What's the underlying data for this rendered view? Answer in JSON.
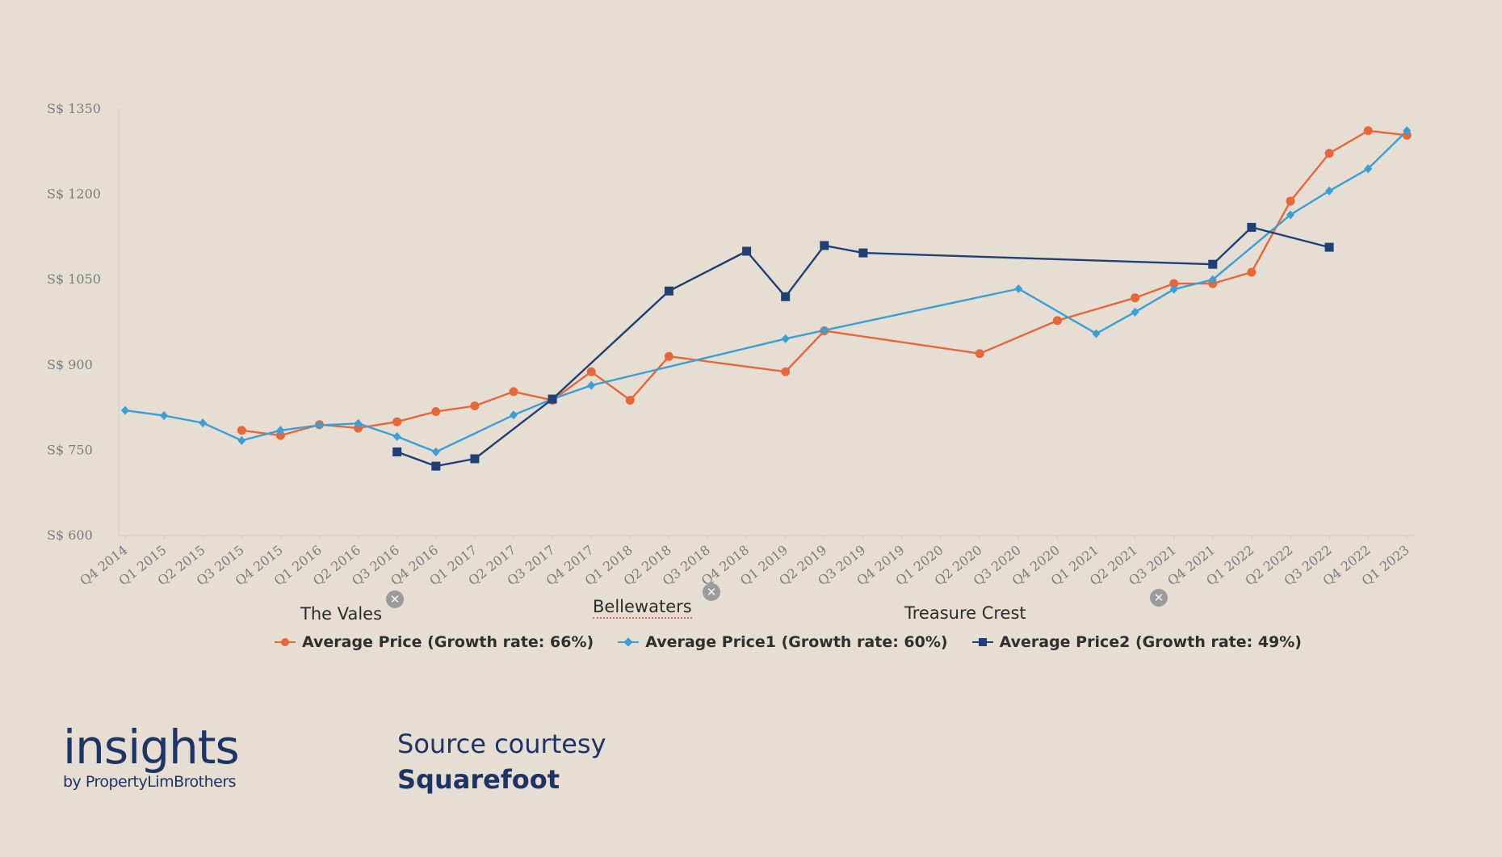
{
  "chart_data": {
    "type": "line",
    "categories": [
      "Q4 2014",
      "Q1 2015",
      "Q2 2015",
      "Q3 2015",
      "Q4 2015",
      "Q1 2016",
      "Q2 2016",
      "Q3 2016",
      "Q4 2016",
      "Q1 2017",
      "Q2 2017",
      "Q3 2017",
      "Q4 2017",
      "Q1 2018",
      "Q2 2018",
      "Q3 2018",
      "Q4 2018",
      "Q1 2019",
      "Q2 2019",
      "Q3 2019",
      "Q4 2019",
      "Q1 2020",
      "Q2 2020",
      "Q3 2020",
      "Q4 2020",
      "Q1 2021",
      "Q2 2021",
      "Q3 2021",
      "Q4 2021",
      "Q1 2022",
      "Q2 2022",
      "Q3 2022",
      "Q4 2022",
      "Q1 2023"
    ],
    "x_points": [
      0,
      1,
      2,
      3,
      4,
      5,
      6,
      7,
      8,
      9,
      10,
      11,
      12,
      13,
      14,
      15,
      16,
      17,
      18,
      19,
      20,
      21,
      22,
      23,
      24,
      25,
      26,
      27,
      28,
      29,
      30,
      31,
      32,
      33
    ],
    "y_ticks": [
      "S$ 1350",
      "S$ 1200",
      "S$ 1050",
      "S$ 900",
      "S$ 750",
      "S$ 600"
    ],
    "y_tick_values": [
      1350,
      1200,
      1050,
      900,
      750,
      600
    ],
    "ylim": [
      600,
      1350
    ],
    "series": [
      {
        "name": "Average Price (Growth rate: 66%)",
        "color": "#e8673a",
        "marker": "circle",
        "points": [
          [
            3,
            785
          ],
          [
            4,
            776
          ],
          [
            5,
            795
          ],
          [
            6,
            789
          ],
          [
            7,
            800
          ],
          [
            8,
            818
          ],
          [
            9,
            828
          ],
          [
            10,
            853
          ],
          [
            11,
            838
          ],
          [
            12,
            888
          ],
          [
            13,
            838
          ],
          [
            14,
            915
          ],
          [
            17,
            888
          ],
          [
            18,
            960
          ],
          [
            22,
            920
          ],
          [
            24,
            978
          ],
          [
            26,
            1018
          ],
          [
            27,
            1043
          ],
          [
            28,
            1043
          ],
          [
            29,
            1063
          ],
          [
            30,
            1188
          ],
          [
            31,
            1272
          ],
          [
            32,
            1312
          ],
          [
            33,
            1304
          ]
        ]
      },
      {
        "name": "Average Price1 (Growth rate: 60%)",
        "color": "#3a9fd6",
        "marker": "diamond",
        "points": [
          [
            0,
            820
          ],
          [
            1,
            811
          ],
          [
            2,
            798
          ],
          [
            3,
            767
          ],
          [
            4,
            785
          ],
          [
            5,
            794
          ],
          [
            6,
            797
          ],
          [
            7,
            774
          ],
          [
            8,
            747
          ],
          [
            10,
            812
          ],
          [
            11,
            840
          ],
          [
            12,
            864
          ],
          [
            17,
            946
          ],
          [
            18,
            961
          ],
          [
            23,
            1034
          ],
          [
            25,
            955
          ],
          [
            26,
            993
          ],
          [
            27,
            1033
          ],
          [
            28,
            1050
          ],
          [
            30,
            1164
          ],
          [
            31,
            1206
          ],
          [
            32,
            1245
          ],
          [
            33,
            1312
          ]
        ]
      },
      {
        "name": "Average Price2 (Growth rate: 49%)",
        "color": "#1f3f75",
        "marker": "square",
        "points": [
          [
            7,
            747
          ],
          [
            8,
            722
          ],
          [
            9,
            735
          ],
          [
            11,
            840
          ],
          [
            14,
            1030
          ],
          [
            16,
            1100
          ],
          [
            17,
            1020
          ],
          [
            18,
            1110
          ],
          [
            19,
            1097
          ],
          [
            28,
            1077
          ],
          [
            29,
            1142
          ],
          [
            31,
            1107
          ]
        ]
      }
    ],
    "annotations": [
      {
        "label": "The Vales",
        "x": 7
      },
      {
        "label": "Bellewaters",
        "x": 15
      },
      {
        "label": "Treasure Crest",
        "x": 27
      }
    ],
    "legend_position": "bottom"
  },
  "close_glyph": "✕",
  "brand": {
    "main": "insights",
    "sub": "by PropertyLimBrothers"
  },
  "source": {
    "line1": "Source courtesy",
    "line2": "Squarefoot"
  }
}
